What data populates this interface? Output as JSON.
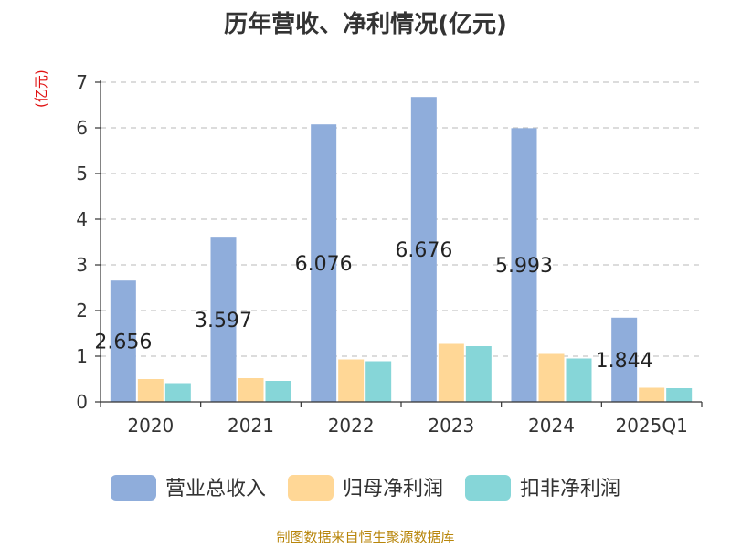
{
  "title": "历年营收、净利情况(亿元)",
  "unit_label": "(亿元)",
  "source": "制图数据来自恒生聚源数据库",
  "colors": {
    "revenue": "#8FADDB",
    "parent_net_profit": "#FFD796",
    "deducted_net_profit": "#86D6D8",
    "unit": "#e01010",
    "source": "#b8860b"
  },
  "chart_data": {
    "type": "bar",
    "title": "历年营收、净利情况(亿元)",
    "ylabel": "(亿元)",
    "categories": [
      "2020",
      "2021",
      "2022",
      "2023",
      "2024",
      "2025Q1"
    ],
    "ylim": [
      0,
      7
    ],
    "yticks": [
      0,
      1,
      2,
      3,
      4,
      5,
      6,
      7
    ],
    "grid": true,
    "legend_position": "bottom",
    "series": [
      {
        "name": "营业总收入",
        "values": [
          2.656,
          3.597,
          6.076,
          6.676,
          5.993,
          1.844
        ],
        "labels": [
          "2.656",
          "3.597",
          "6.076",
          "6.676",
          "5.993",
          "1.844"
        ]
      },
      {
        "name": "归母净利润",
        "values": [
          0.5,
          0.52,
          0.93,
          1.27,
          1.05,
          0.31
        ]
      },
      {
        "name": "扣非净利润",
        "values": [
          0.41,
          0.46,
          0.89,
          1.22,
          0.95,
          0.3
        ]
      }
    ]
  }
}
